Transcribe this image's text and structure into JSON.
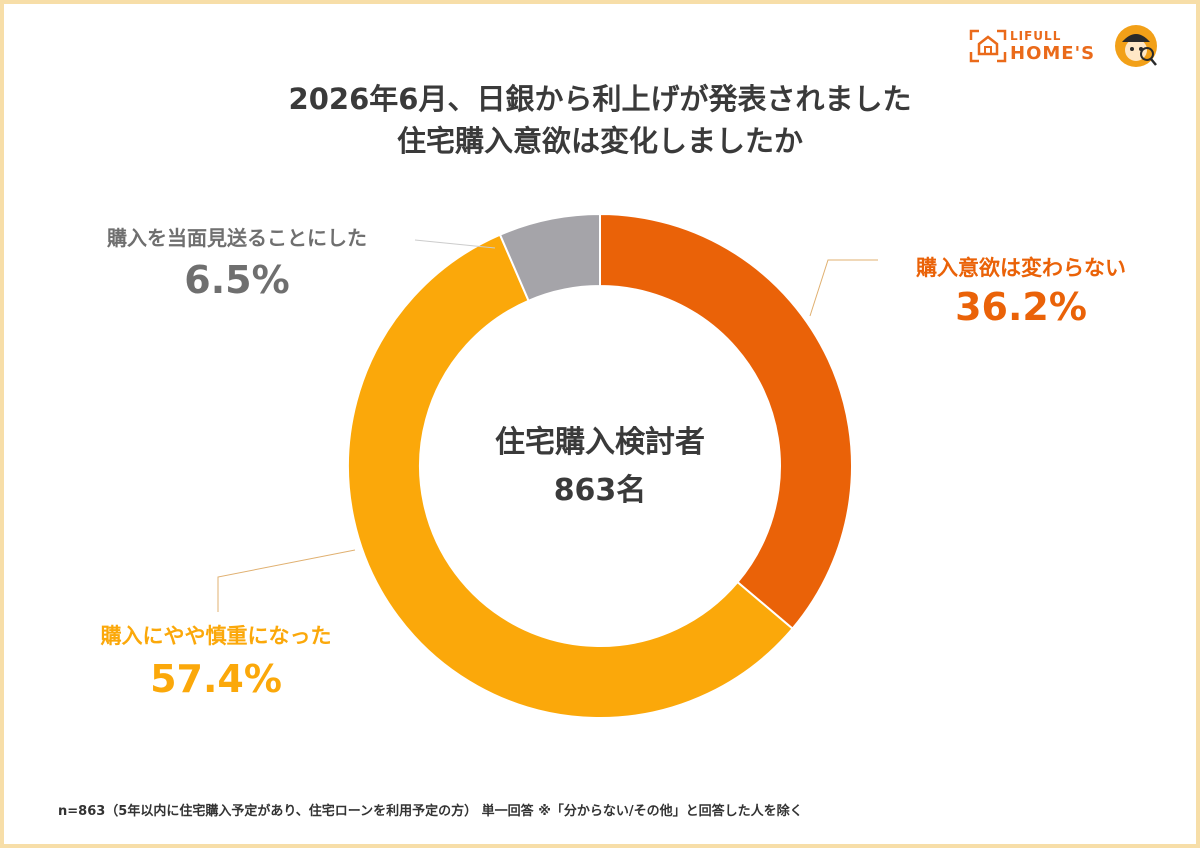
{
  "title_line1": "2026年6月、日銀から利上げが発表されました",
  "title_line2": "住宅購入意欲は変化しましたか",
  "logo": {
    "line1": "LIFULL",
    "line2": "HOME'S",
    "icon": "house-icon",
    "mascot": "mascot-icon"
  },
  "colors": {
    "orange": "#ea6208",
    "amber": "#fba80a",
    "gray": "#a5a4a9",
    "text": "#3a3a3a",
    "gray_text": "#6f6f6f"
  },
  "chart_data": {
    "type": "pie",
    "donut": true,
    "center_label_line1": "住宅購入検討者",
    "center_label_line2": "863名",
    "slices": [
      {
        "label": "購入意欲は変わらない",
        "value": 36.2,
        "value_text": "36.2%",
        "color": "#ea6208"
      },
      {
        "label": "購入にやや慎重になった",
        "value": 57.4,
        "value_text": "57.4%",
        "color": "#fba80a"
      },
      {
        "label": "購入を当面見送ることにした",
        "value": 6.5,
        "value_text": "6.5%",
        "color": "#a5a4a9"
      }
    ]
  },
  "footnote": "n=863（5年以内に住宅購入予定があり、住宅ローンを利用予定の方） 単一回答 ※「分からない/その他」と回答した人を除く"
}
